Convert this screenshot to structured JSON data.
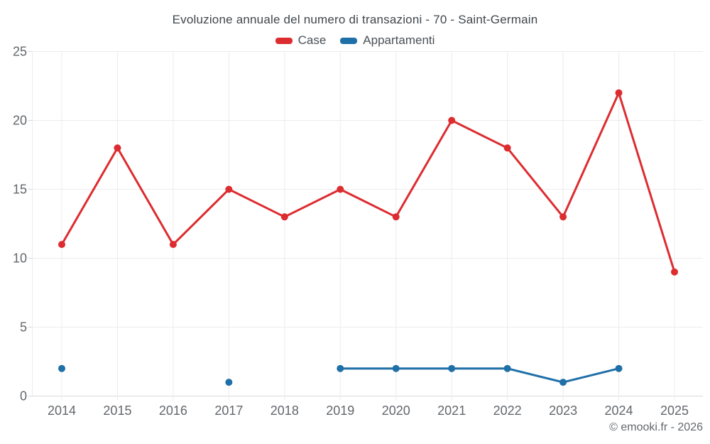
{
  "title": "Evoluzione annuale del numero di transazioni - 70 - Saint-Germain",
  "footer": "© emooki.fr - 2026",
  "colors": {
    "case_red": "#dd2c30",
    "appartamenti_blue": "#1f6fa8",
    "grid": "#ececec",
    "axis": "#d8d8d8",
    "tick_label": "#63676b",
    "title_text": "#3f464c"
  },
  "chart_data": {
    "type": "line",
    "title": "Evoluzione annuale del numero di transazioni - 70 - Saint-Germain",
    "categories": [
      "2014",
      "2015",
      "2016",
      "2017",
      "2018",
      "2019",
      "2020",
      "2021",
      "2022",
      "2023",
      "2024",
      "2025"
    ],
    "series": [
      {
        "name": "Case",
        "color": "#dd2c30",
        "values": [
          11,
          18,
          11,
          15,
          13,
          15,
          13,
          20,
          18,
          13,
          22,
          9
        ]
      },
      {
        "name": "Appartamenti",
        "color": "#1f6fa8",
        "values": [
          2,
          null,
          null,
          1,
          null,
          2,
          2,
          2,
          2,
          1,
          2,
          null
        ]
      }
    ],
    "xlabel": "",
    "ylabel": "",
    "ylim": [
      0,
      25
    ],
    "yticks": [
      0,
      5,
      10,
      15,
      20,
      25
    ],
    "grid": true,
    "legend_position": "top",
    "markers": true
  }
}
